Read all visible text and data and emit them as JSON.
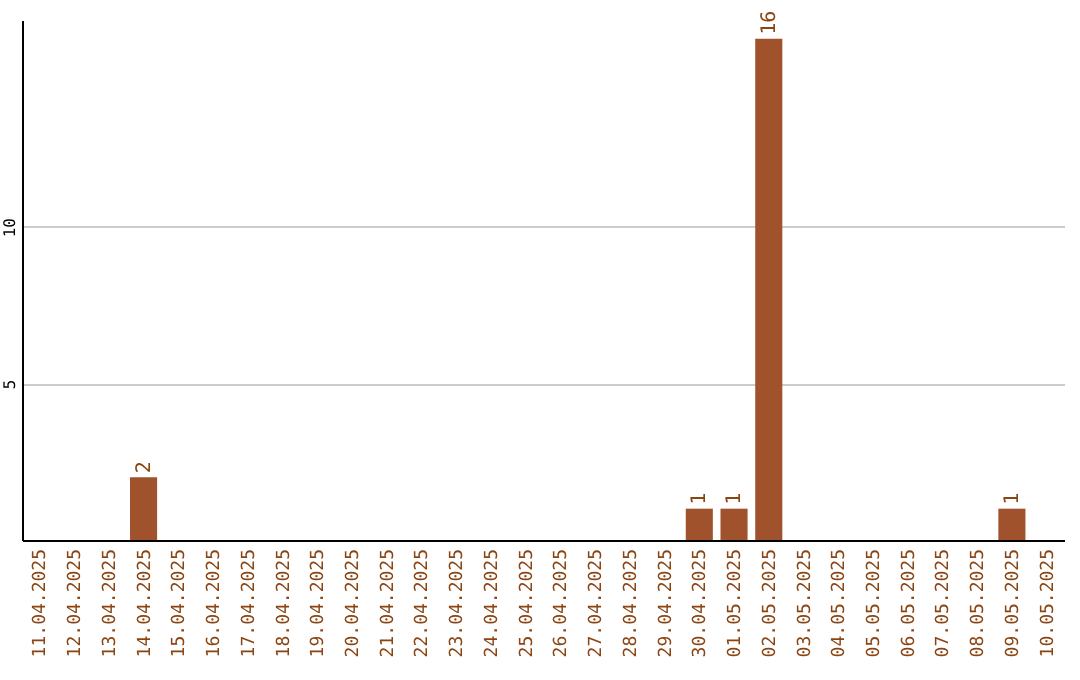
{
  "chart_data": {
    "type": "bar",
    "categories": [
      "11.04.2025",
      "12.04.2025",
      "13.04.2025",
      "14.04.2025",
      "15.04.2025",
      "16.04.2025",
      "17.04.2025",
      "18.04.2025",
      "19.04.2025",
      "20.04.2025",
      "21.04.2025",
      "22.04.2025",
      "23.04.2025",
      "24.04.2025",
      "25.04.2025",
      "26.04.2025",
      "27.04.2025",
      "28.04.2025",
      "29.04.2025",
      "30.04.2025",
      "01.05.2025",
      "02.05.2025",
      "03.05.2025",
      "04.05.2025",
      "05.05.2025",
      "06.05.2025",
      "07.05.2025",
      "08.05.2025",
      "09.05.2025",
      "10.05.2025"
    ],
    "values": [
      0,
      0,
      0,
      2,
      0,
      0,
      0,
      0,
      0,
      0,
      0,
      0,
      0,
      0,
      0,
      0,
      0,
      0,
      0,
      1,
      1,
      16,
      0,
      0,
      0,
      0,
      0,
      0,
      1,
      0
    ],
    "value_labels": [
      null,
      null,
      null,
      "2",
      null,
      null,
      null,
      null,
      null,
      null,
      null,
      null,
      null,
      null,
      null,
      null,
      null,
      null,
      null,
      "1",
      "1",
      "16",
      null,
      null,
      null,
      null,
      null,
      null,
      "1",
      null
    ],
    "color": "#a0522d",
    "ylim": [
      0,
      16.6
    ],
    "yticks": [
      5,
      10
    ],
    "grid": "y"
  }
}
